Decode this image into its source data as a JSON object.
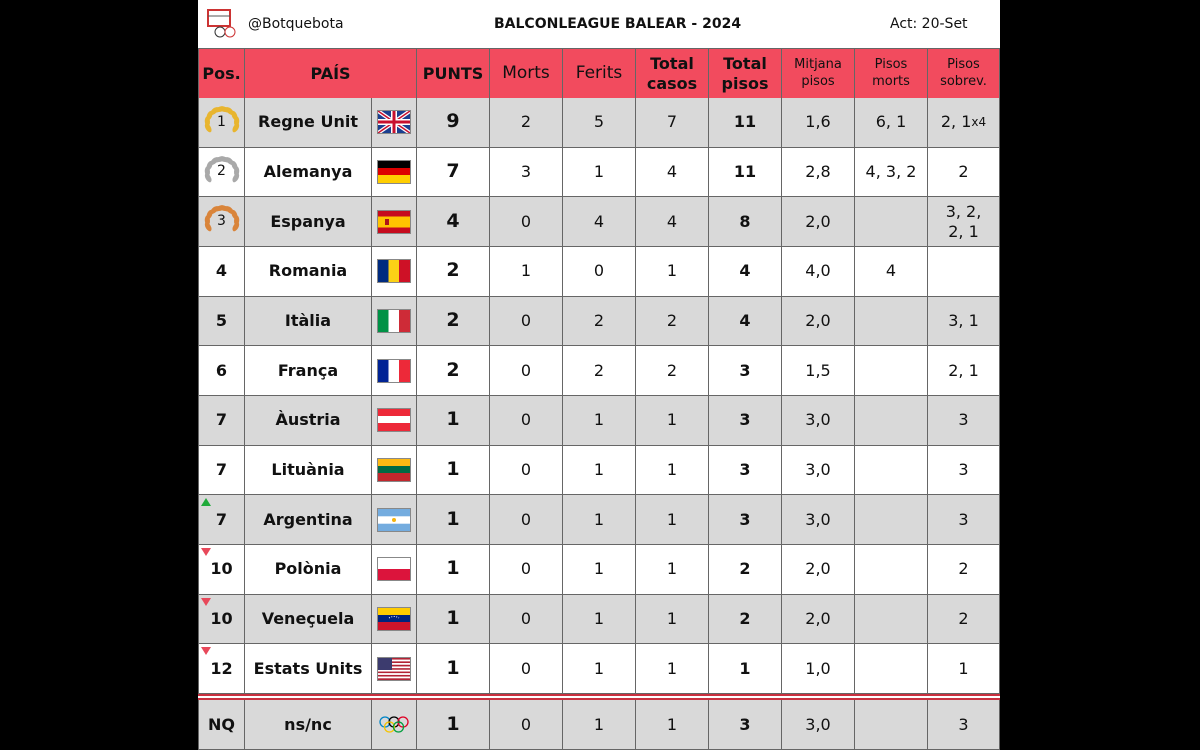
{
  "header": {
    "handle": "@Botquebota",
    "title": "BALCONLEAGUE BALEAR - 2024",
    "updated": "Act: 20-Set"
  },
  "table": {
    "columns": [
      "Pos.",
      "PAÍS",
      "PUNTS",
      "Morts",
      "Ferits",
      "Total casos",
      "Total pisos",
      "Mitjana pisos",
      "Pisos morts",
      "Pisos sobrev."
    ],
    "rows": [
      [
        1,
        "Regne Unit",
        9,
        2,
        5,
        7,
        11,
        "1,6",
        "6, 1",
        {
          "text": "2, 1",
          "multiplier": "x4"
        }
      ],
      [
        2,
        "Alemanya",
        7,
        3,
        1,
        4,
        11,
        "2,8",
        "4, 3, 2",
        "2"
      ],
      [
        3,
        "Espanya",
        4,
        0,
        4,
        4,
        8,
        "2,0",
        null,
        "3, 2,\n2, 1"
      ],
      [
        4,
        "Romania",
        2,
        1,
        0,
        1,
        4,
        "4,0",
        "4",
        null
      ],
      [
        5,
        "Itàlia",
        2,
        0,
        2,
        2,
        4,
        "2,0",
        null,
        "3, 1"
      ],
      [
        6,
        "França",
        2,
        0,
        2,
        2,
        3,
        "1,5",
        null,
        "2, 1"
      ],
      [
        7,
        "Àustria",
        1,
        0,
        1,
        1,
        3,
        "3,0",
        null,
        "3"
      ],
      [
        7,
        "Lituània",
        1,
        0,
        1,
        1,
        3,
        "3,0",
        null,
        "3"
      ],
      [
        7,
        "Argentina",
        1,
        0,
        1,
        1,
        3,
        "3,0",
        null,
        "3"
      ],
      [
        10,
        "Polònia",
        1,
        0,
        1,
        1,
        2,
        "2,0",
        null,
        "2"
      ],
      [
        10,
        "Veneçuela",
        1,
        0,
        1,
        1,
        2,
        "2,0",
        null,
        "2"
      ],
      [
        12,
        "Estats Units",
        1,
        0,
        1,
        1,
        1,
        "1,0",
        null,
        "1"
      ]
    ],
    "nq_row": [
      "NQ",
      "ns/nc",
      1,
      0,
      1,
      1,
      3,
      "3,0",
      null,
      "3"
    ]
  }
}
